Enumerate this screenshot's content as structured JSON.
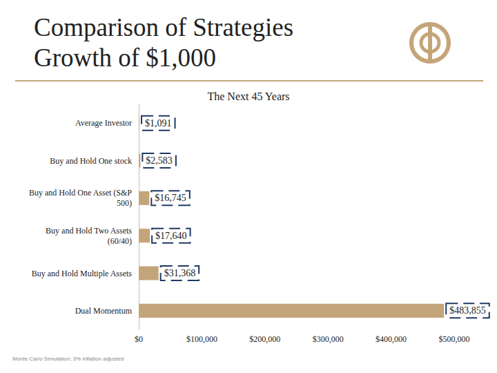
{
  "chart_data": {
    "type": "bar",
    "orientation": "horizontal",
    "title": "Comparison of Strategies\nGrowth of $1,000",
    "subtitle": "The Next 45 Years",
    "categories": [
      "Average Investor",
      "Buy and Hold One stock",
      "Buy and Hold One Asset (S&P\n500)",
      "Buy and Hold Two Assets\n(60/40)",
      "Buy and Hold Multiple Assets",
      "Dual Momentum"
    ],
    "values": [
      1091,
      2583,
      16745,
      17640,
      31368,
      483855
    ],
    "value_labels": [
      "$1,091",
      "$2,583",
      "$16,745",
      "$17,640",
      "$31,368",
      "$483,855"
    ],
    "color": "#c4a57a",
    "xlim": [
      0,
      500000
    ],
    "xticks": [
      {
        "value": 0,
        "label": "$0"
      },
      {
        "value": 100000,
        "label": "$100,000"
      },
      {
        "value": 200000,
        "label": "$200,000"
      },
      {
        "value": 300000,
        "label": "$300,000"
      },
      {
        "value": 400000,
        "label": "$400,000"
      },
      {
        "value": 500000,
        "label": "$500,000"
      }
    ],
    "grid": false,
    "data_labels": true,
    "annotations": [
      "Monte Carlo Simulation; 3% inflation adjusted"
    ]
  }
}
